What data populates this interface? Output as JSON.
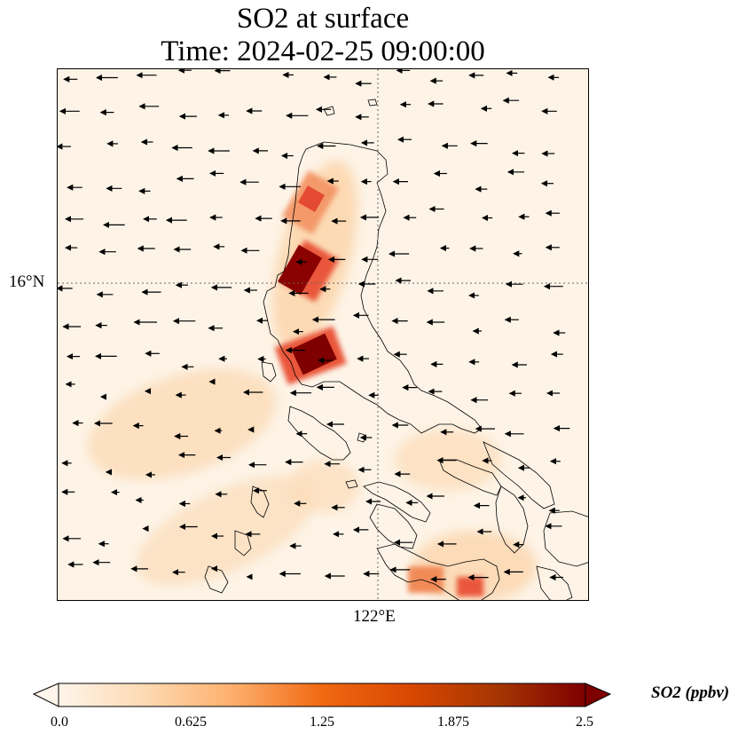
{
  "title": "SO2 at surface",
  "subtitle": "Time: 2024-02-25 09:00:00",
  "lat_tick": "16°N",
  "lon_tick": "122°E",
  "colorbar": {
    "label": "SO2 (ppbv)",
    "ticks": [
      "0.0",
      "0.625",
      "1.25",
      "1.875",
      "2.5"
    ],
    "colors": [
      "#fff5eb",
      "#fdd9b1",
      "#fdae6b",
      "#f16913",
      "#d94801",
      "#a63603",
      "#7f0000"
    ]
  }
}
